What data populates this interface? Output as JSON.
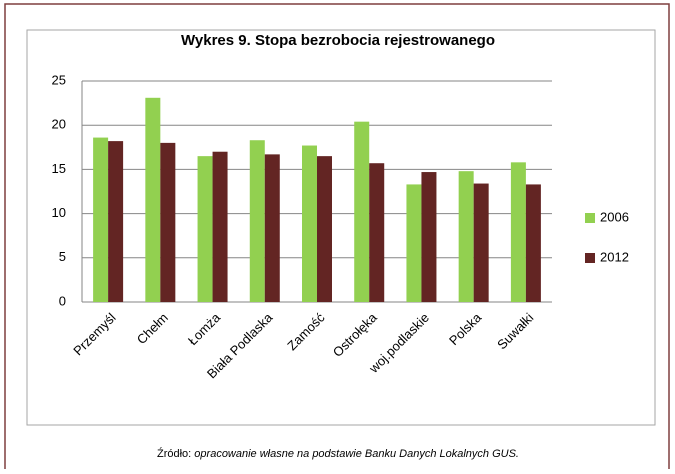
{
  "chart_data": {
    "type": "bar",
    "title": "Wykres 9. Stopa bezrobocia rejestrowanego",
    "categories": [
      "Przemyśl",
      "Chełm",
      "Łomża",
      "Biała Podlaska",
      "Zamość",
      "Ostrołęka",
      "woj.podlaskie",
      "Polska",
      "Suwałki"
    ],
    "series": [
      {
        "name": "2006",
        "color": "#92d050",
        "values": [
          18.6,
          23.1,
          16.5,
          18.3,
          17.7,
          20.4,
          13.3,
          14.8,
          15.8
        ]
      },
      {
        "name": "2012",
        "color": "#632523",
        "values": [
          18.2,
          18.0,
          17.0,
          16.7,
          16.5,
          15.7,
          14.7,
          13.4,
          13.3
        ]
      }
    ],
    "ylim": [
      0,
      25
    ],
    "yticks": [
      0,
      5,
      10,
      15,
      20,
      25
    ],
    "grid": true,
    "legend": "right"
  },
  "source": {
    "label": "Źródło:",
    "text": "opracowanie własne na podstawie Banku Danych Lokalnych GUS."
  }
}
